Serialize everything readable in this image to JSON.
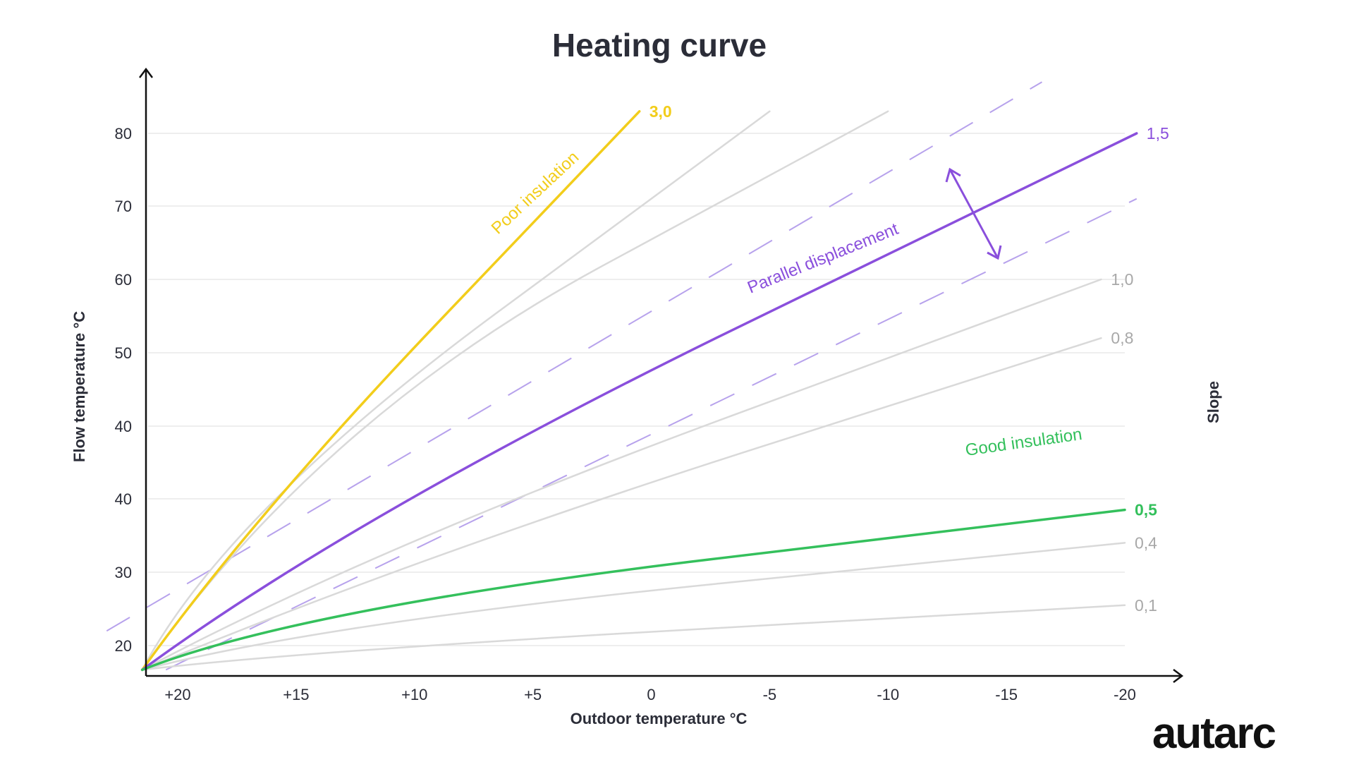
{
  "chart_data": {
    "type": "line",
    "title": "Heating curve",
    "xlabel": "Outdoor temperature °C",
    "ylabel": "Flow temperature °C",
    "secondary_label": "Slope",
    "x_ticks": [
      "+20",
      "+15",
      "+10",
      "+5",
      "0",
      "-5",
      "-10",
      "-15",
      "-20"
    ],
    "y_ticks": [
      "20",
      "30",
      "40",
      "40",
      "50",
      "60",
      "70",
      "80"
    ],
    "grid": "horizontal",
    "colors": {
      "default": "#d9d9d9",
      "poor": "#f2cd1b",
      "main": "#8a4fdc",
      "good": "#34c05c",
      "dashed": "#b7a2ec",
      "axis": "#111111",
      "text": "#2b2d38",
      "slope_gray": "#a8a8a8"
    },
    "series": [
      {
        "name": "3,0",
        "highlight": "poor",
        "label_color": "poor",
        "bold": true,
        "points": [
          [
            21.5,
            16
          ],
          [
            17,
            37
          ],
          [
            0.5,
            83
          ]
        ]
      },
      {
        "name": "",
        "highlight": "default",
        "points": [
          [
            21.5,
            16
          ],
          [
            18,
            38
          ],
          [
            -5,
            83
          ]
        ]
      },
      {
        "name": "",
        "highlight": "default",
        "points": [
          [
            21.5,
            16
          ],
          [
            14,
            41
          ],
          [
            -10,
            83
          ]
        ]
      },
      {
        "name": "1,5",
        "highlight": "main",
        "label_color": "main",
        "points": [
          [
            21.5,
            16
          ],
          [
            12.5,
            38
          ],
          [
            -20.5,
            80
          ]
        ]
      },
      {
        "name": "1,0",
        "highlight": "default",
        "label_color": "slope_gray",
        "points": [
          [
            21.5,
            16
          ],
          [
            12,
            33
          ],
          [
            -19,
            60
          ]
        ]
      },
      {
        "name": "0,8",
        "highlight": "default",
        "label_color": "slope_gray",
        "points": [
          [
            21.5,
            16
          ],
          [
            10,
            32
          ],
          [
            -19,
            52
          ]
        ]
      },
      {
        "name": "0,5",
        "highlight": "good",
        "label_color": "good",
        "bold": true,
        "points": [
          [
            21.5,
            16
          ],
          [
            15,
            25
          ],
          [
            -20,
            38.5
          ]
        ]
      },
      {
        "name": "0,4",
        "highlight": "default",
        "label_color": "slope_gray",
        "points": [
          [
            21.5,
            16
          ],
          [
            14,
            23
          ],
          [
            -20,
            34
          ]
        ]
      },
      {
        "name": "0,1",
        "highlight": "default",
        "label_color": "slope_gray",
        "points": [
          [
            21.5,
            16
          ],
          [
            15,
            19
          ],
          [
            -20,
            25.5
          ]
        ]
      }
    ],
    "dashed_lines": [
      {
        "points": [
          [
            23,
            22
          ],
          [
            -16.5,
            87
          ]
        ]
      },
      {
        "points": [
          [
            20.5,
            14
          ],
          [
            -20.5,
            71
          ]
        ]
      }
    ],
    "annotations": [
      {
        "text": "Poor insulation",
        "color": "poor"
      },
      {
        "text": "Parallel displacement",
        "color": "main"
      },
      {
        "text": "Good insulation",
        "color": "good"
      }
    ]
  },
  "logo": "autarc"
}
